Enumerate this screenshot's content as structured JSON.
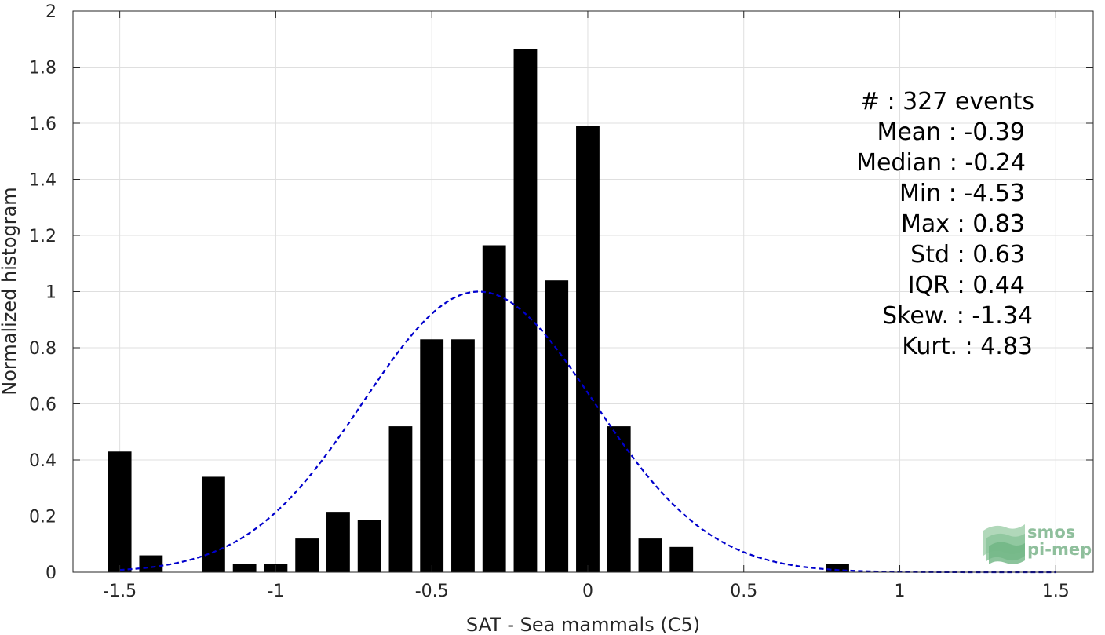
{
  "chart_data": {
    "type": "bar",
    "xlabel": "SAT - Sea mammals (C5)",
    "ylabel": "Normalized histogram",
    "xlim": [
      -1.65,
      1.62
    ],
    "ylim": [
      0,
      2
    ],
    "x_ticks": [
      -1.5,
      -1,
      -0.5,
      0,
      0.5,
      1,
      1.5
    ],
    "x_tick_labels": [
      "-1.5",
      "-1",
      "-0.5",
      "0",
      "0.5",
      "1",
      "1.5"
    ],
    "y_ticks": [
      0,
      0.2,
      0.4,
      0.6,
      0.8,
      1,
      1.2,
      1.4,
      1.6,
      1.8,
      2
    ],
    "y_tick_labels": [
      "0",
      "0.2",
      "0.4",
      "0.6",
      "0.8",
      "1",
      "1.2",
      "1.4",
      "1.6",
      "1.8",
      "2"
    ],
    "grid": true,
    "bar_width": 0.075,
    "bar_color": "#000000",
    "bars": [
      {
        "x": -1.5,
        "y": 0.43
      },
      {
        "x": -1.4,
        "y": 0.06
      },
      {
        "x": -1.2,
        "y": 0.34
      },
      {
        "x": -1.1,
        "y": 0.03
      },
      {
        "x": -1.0,
        "y": 0.03
      },
      {
        "x": -0.9,
        "y": 0.12
      },
      {
        "x": -0.8,
        "y": 0.215
      },
      {
        "x": -0.7,
        "y": 0.185
      },
      {
        "x": -0.6,
        "y": 0.52
      },
      {
        "x": -0.5,
        "y": 0.83
      },
      {
        "x": -0.4,
        "y": 0.83
      },
      {
        "x": -0.3,
        "y": 1.165
      },
      {
        "x": -0.2,
        "y": 1.865
      },
      {
        "x": -0.1,
        "y": 1.04
      },
      {
        "x": 0.0,
        "y": 1.59
      },
      {
        "x": 0.1,
        "y": 0.52
      },
      {
        "x": 0.2,
        "y": 0.12
      },
      {
        "x": 0.3,
        "y": 0.09
      },
      {
        "x": 0.8,
        "y": 0.03
      }
    ],
    "fit_curve": {
      "style": "dashed",
      "color": "#0000cc",
      "peak": 1.0,
      "center": -0.35,
      "sigma": 0.37,
      "x_range": [
        -1.5,
        1.5
      ]
    },
    "annotation": [
      "#  : 327 events",
      "Mean : -0.39",
      "Median : -0.24",
      "Min : -4.53",
      "Max : 0.83",
      "Std : 0.63",
      "IQR : 0.44",
      "Skew. : -1.34",
      "Kurt. : 4.83"
    ]
  },
  "logo": {
    "line1": "smos",
    "line2": "pi-mep",
    "color": "#8fbf9c"
  }
}
